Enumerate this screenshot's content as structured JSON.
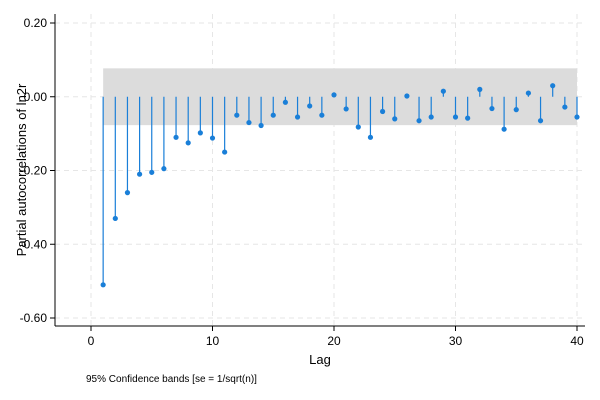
{
  "chart_data": {
    "type": "pacf",
    "xlabel": "Lag",
    "ylabel": "Partial autocorrelations of ln2r",
    "note": "95% Confidence bands [se = 1/sqrt(n)]",
    "xlim": [
      0,
      40
    ],
    "ylim": [
      -0.6,
      0.2
    ],
    "x_ticks": [
      0,
      10,
      20,
      30,
      40
    ],
    "x_tick_labels": [
      "0",
      "10",
      "20",
      "30",
      "40"
    ],
    "y_ticks": [
      0.2,
      0.0,
      -0.2,
      -0.4,
      -0.6
    ],
    "y_tick_labels": [
      "0.20",
      "0.00",
      "-0.20",
      "-0.40",
      "-0.60"
    ],
    "grid": true,
    "confidence_band": {
      "lower": -0.077,
      "upper": 0.077
    },
    "lags": [
      1,
      2,
      3,
      4,
      5,
      6,
      7,
      8,
      9,
      10,
      11,
      12,
      13,
      14,
      15,
      16,
      17,
      18,
      19,
      20,
      21,
      22,
      23,
      24,
      25,
      26,
      27,
      28,
      29,
      30,
      31,
      32,
      33,
      34,
      35,
      36,
      37,
      38,
      39,
      40
    ],
    "values": [
      -0.51,
      -0.33,
      -0.26,
      -0.21,
      -0.205,
      -0.195,
      -0.11,
      -0.125,
      -0.098,
      -0.112,
      -0.15,
      -0.05,
      -0.07,
      -0.078,
      -0.05,
      -0.015,
      -0.055,
      -0.025,
      -0.05,
      0.005,
      -0.033,
      -0.082,
      -0.11,
      -0.04,
      -0.06,
      0.002,
      -0.065,
      -0.055,
      0.015,
      -0.055,
      -0.058,
      0.02,
      -0.032,
      -0.088,
      -0.035,
      0.01,
      -0.065,
      0.03,
      -0.028,
      -0.055
    ],
    "colors": {
      "stem": "#1a7fd8",
      "marker": "#1a7fd8",
      "band": "#dcdcdc",
      "grid": "#e6e6e6",
      "axis": "#000000"
    }
  }
}
